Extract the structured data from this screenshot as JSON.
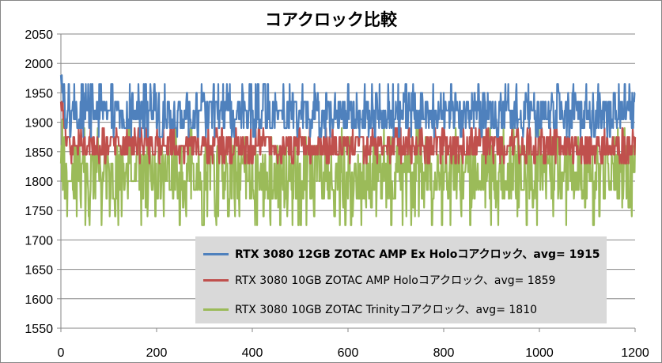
{
  "chart_data": {
    "type": "line",
    "title": "コアクロック比較",
    "xlabel": "",
    "ylabel": "",
    "xlim": [
      0,
      1200
    ],
    "ylim": [
      1550,
      2050
    ],
    "x_ticks": [
      0,
      200,
      400,
      600,
      800,
      1000,
      1200
    ],
    "y_ticks": [
      1550,
      1600,
      1650,
      1700,
      1750,
      1800,
      1850,
      1900,
      1950,
      2000,
      2050
    ],
    "grid": "horizontal",
    "legend_position": "bottom-right",
    "series": [
      {
        "name": "RTX 3080 12GB ZOTAC AMP Ex Holoコアクロック、avg= 1915",
        "color": "#4f81bd",
        "avg": 1915,
        "levels": [
          1890,
          1905,
          1920,
          1935
        ],
        "spike_levels": [
          1950,
          1965,
          1875
        ],
        "start": [
          1980,
          1965,
          1980,
          1950,
          1965,
          1935,
          1950,
          1965,
          1935
        ],
        "end_value": 1950
      },
      {
        "name": "RTX 3080 10GB ZOTAC AMP Holoコアクロック、avg= 1859",
        "color": "#c0504d",
        "avg": 1859,
        "levels": [
          1845,
          1860,
          1875
        ],
        "spike_levels": [
          1830,
          1890
        ],
        "start": [
          1935,
          1920,
          1935,
          1920,
          1935,
          1905,
          1920,
          1890,
          1905
        ],
        "end_value": 1875
      },
      {
        "name": "RTX 3080 10GB ZOTAC Trinityコアクロック、avg= 1810",
        "color": "#9bbb59",
        "avg": 1810,
        "levels": [
          1770,
          1785,
          1800,
          1815,
          1830,
          1845,
          1860
        ],
        "spike_levels": [
          1725,
          1740,
          1755,
          1875,
          1890
        ],
        "start": [
          1830,
          1860,
          1800,
          1905,
          1785,
          1860,
          1815,
          1875,
          1770
        ],
        "end_value": 1875
      }
    ]
  }
}
